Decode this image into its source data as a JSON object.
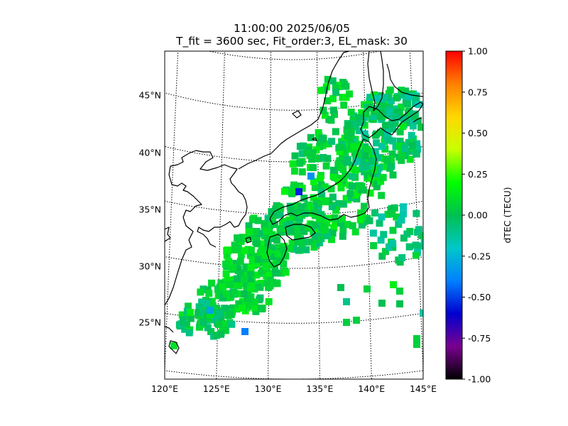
{
  "title": {
    "line1": "11:00:00 2025/06/05",
    "line2": "T_fit = 3600 sec, Fit_order:3, EL_mask: 30"
  },
  "map": {
    "lon_range": [
      120,
      145
    ],
    "lat_range": [
      20,
      49
    ],
    "lon_ticks": [
      {
        "value": 120,
        "label": "120°E"
      },
      {
        "value": 125,
        "label": "125°E"
      },
      {
        "value": 130,
        "label": "130°E"
      },
      {
        "value": 135,
        "label": "135°E"
      },
      {
        "value": 140,
        "label": "140°E"
      },
      {
        "value": 145,
        "label": "145°E"
      }
    ],
    "lat_ticks": [
      {
        "value": 45,
        "label": "45°N"
      },
      {
        "value": 40,
        "label": "40°N"
      },
      {
        "value": 35,
        "label": "35°N"
      },
      {
        "value": 30,
        "label": "30°N"
      },
      {
        "value": 25,
        "label": "25°N"
      }
    ],
    "graticule": "dotted",
    "coastline_color": "#000000"
  },
  "colorbar": {
    "label": "dTEC (TECU)",
    "vmin": -1.0,
    "vmax": 1.0,
    "ticks": [
      "1.00",
      "0.75",
      "0.50",
      "0.25",
      "0.00",
      "-0.25",
      "-0.50",
      "-0.75",
      "-1.00"
    ],
    "colormap": "nipy_spectral",
    "stops": [
      "#000000",
      "#7a0090",
      "#0000d0",
      "#0080ff",
      "#00c8c8",
      "#00c050",
      "#00ff00",
      "#c8ff00",
      "#ffd800",
      "#ff8000",
      "#ff0000"
    ]
  }
}
